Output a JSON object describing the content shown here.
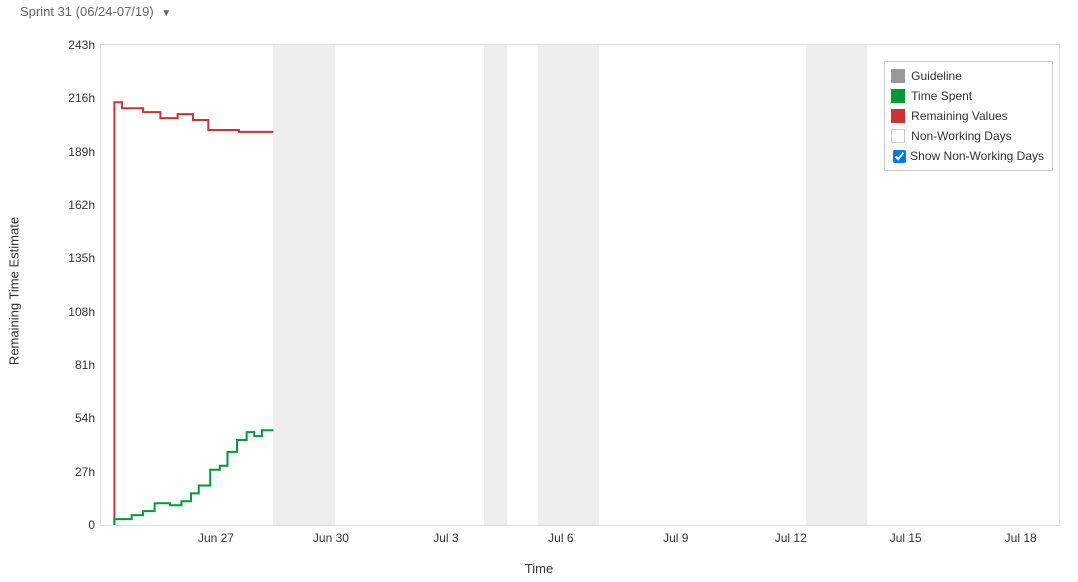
{
  "header": {
    "sprint_label": "Sprint 31 (06/24-07/19)"
  },
  "chart": {
    "type": "line",
    "y_axis_title": "Remaining Time Estimate",
    "x_axis_title": "Time",
    "background_color": "#ffffff",
    "border_color": "#dddddd",
    "non_working_day_color": "#eeeeee",
    "x_domain_days": {
      "start": 0,
      "end": 25
    },
    "y_domain": {
      "min": 0,
      "max": 243
    },
    "y_ticks": [
      {
        "value": 0,
        "label": "0"
      },
      {
        "value": 27,
        "label": "27h"
      },
      {
        "value": 54,
        "label": "54h"
      },
      {
        "value": 81,
        "label": "81h"
      },
      {
        "value": 108,
        "label": "108h"
      },
      {
        "value": 135,
        "label": "135h"
      },
      {
        "value": 162,
        "label": "162h"
      },
      {
        "value": 189,
        "label": "189h"
      },
      {
        "value": 216,
        "label": "216h"
      },
      {
        "value": 243,
        "label": "243h"
      }
    ],
    "x_ticks": [
      {
        "day": 3,
        "label": "Jun 27"
      },
      {
        "day": 6,
        "label": "Jun 30"
      },
      {
        "day": 9,
        "label": "Jul 3"
      },
      {
        "day": 12,
        "label": "Jul 6"
      },
      {
        "day": 15,
        "label": "Jul 9"
      },
      {
        "day": 18,
        "label": "Jul 12"
      },
      {
        "day": 21,
        "label": "Jul 15"
      },
      {
        "day": 24,
        "label": "Jul 18"
      }
    ],
    "non_working_day_bands": [
      {
        "start_day": 4.5,
        "end_day": 6.1
      },
      {
        "start_day": 10.0,
        "end_day": 10.6
      },
      {
        "start_day": 11.4,
        "end_day": 13.0
      },
      {
        "start_day": 18.4,
        "end_day": 20.0
      }
    ],
    "series": {
      "remaining": {
        "color": "#cc3333",
        "stroke_width": 2,
        "points": [
          {
            "day": 0.35,
            "value": 0
          },
          {
            "day": 0.35,
            "value": 214
          },
          {
            "day": 0.55,
            "value": 214
          },
          {
            "day": 0.55,
            "value": 211
          },
          {
            "day": 1.1,
            "value": 211
          },
          {
            "day": 1.1,
            "value": 209
          },
          {
            "day": 1.55,
            "value": 209
          },
          {
            "day": 1.55,
            "value": 206
          },
          {
            "day": 2.0,
            "value": 206
          },
          {
            "day": 2.0,
            "value": 208
          },
          {
            "day": 2.4,
            "value": 208
          },
          {
            "day": 2.4,
            "value": 205
          },
          {
            "day": 2.8,
            "value": 205
          },
          {
            "day": 2.8,
            "value": 200
          },
          {
            "day": 3.6,
            "value": 200
          },
          {
            "day": 3.6,
            "value": 199
          },
          {
            "day": 4.5,
            "value": 199
          }
        ]
      },
      "time_spent": {
        "color": "#009933",
        "stroke_width": 2,
        "points": [
          {
            "day": 0.35,
            "value": 0
          },
          {
            "day": 0.35,
            "value": 3
          },
          {
            "day": 0.8,
            "value": 3
          },
          {
            "day": 0.8,
            "value": 5
          },
          {
            "day": 1.1,
            "value": 5
          },
          {
            "day": 1.1,
            "value": 7
          },
          {
            "day": 1.4,
            "value": 7
          },
          {
            "day": 1.4,
            "value": 11
          },
          {
            "day": 1.8,
            "value": 11
          },
          {
            "day": 1.8,
            "value": 10
          },
          {
            "day": 2.1,
            "value": 10
          },
          {
            "day": 2.1,
            "value": 12
          },
          {
            "day": 2.35,
            "value": 12
          },
          {
            "day": 2.35,
            "value": 16
          },
          {
            "day": 2.55,
            "value": 16
          },
          {
            "day": 2.55,
            "value": 20
          },
          {
            "day": 2.85,
            "value": 20
          },
          {
            "day": 2.85,
            "value": 28
          },
          {
            "day": 3.1,
            "value": 28
          },
          {
            "day": 3.1,
            "value": 30
          },
          {
            "day": 3.3,
            "value": 30
          },
          {
            "day": 3.3,
            "value": 37
          },
          {
            "day": 3.55,
            "value": 37
          },
          {
            "day": 3.55,
            "value": 43
          },
          {
            "day": 3.8,
            "value": 43
          },
          {
            "day": 3.8,
            "value": 47
          },
          {
            "day": 4.0,
            "value": 47
          },
          {
            "day": 4.0,
            "value": 45
          },
          {
            "day": 4.2,
            "value": 45
          },
          {
            "day": 4.2,
            "value": 48
          },
          {
            "day": 4.5,
            "value": 48
          }
        ]
      }
    },
    "legend": {
      "items": [
        {
          "key": "guideline",
          "label": "Guideline",
          "color": "#999999",
          "type": "square"
        },
        {
          "key": "time_spent",
          "label": "Time Spent",
          "color": "#009933",
          "type": "square"
        },
        {
          "key": "remaining",
          "label": "Remaining Values",
          "color": "#cc3333",
          "type": "square"
        },
        {
          "key": "nwd",
          "label": "Non-Working Days",
          "color": "#ffffff",
          "type": "nwd"
        }
      ],
      "checkbox_label": "Show Non-Working Days",
      "checkbox_checked": true
    }
  }
}
